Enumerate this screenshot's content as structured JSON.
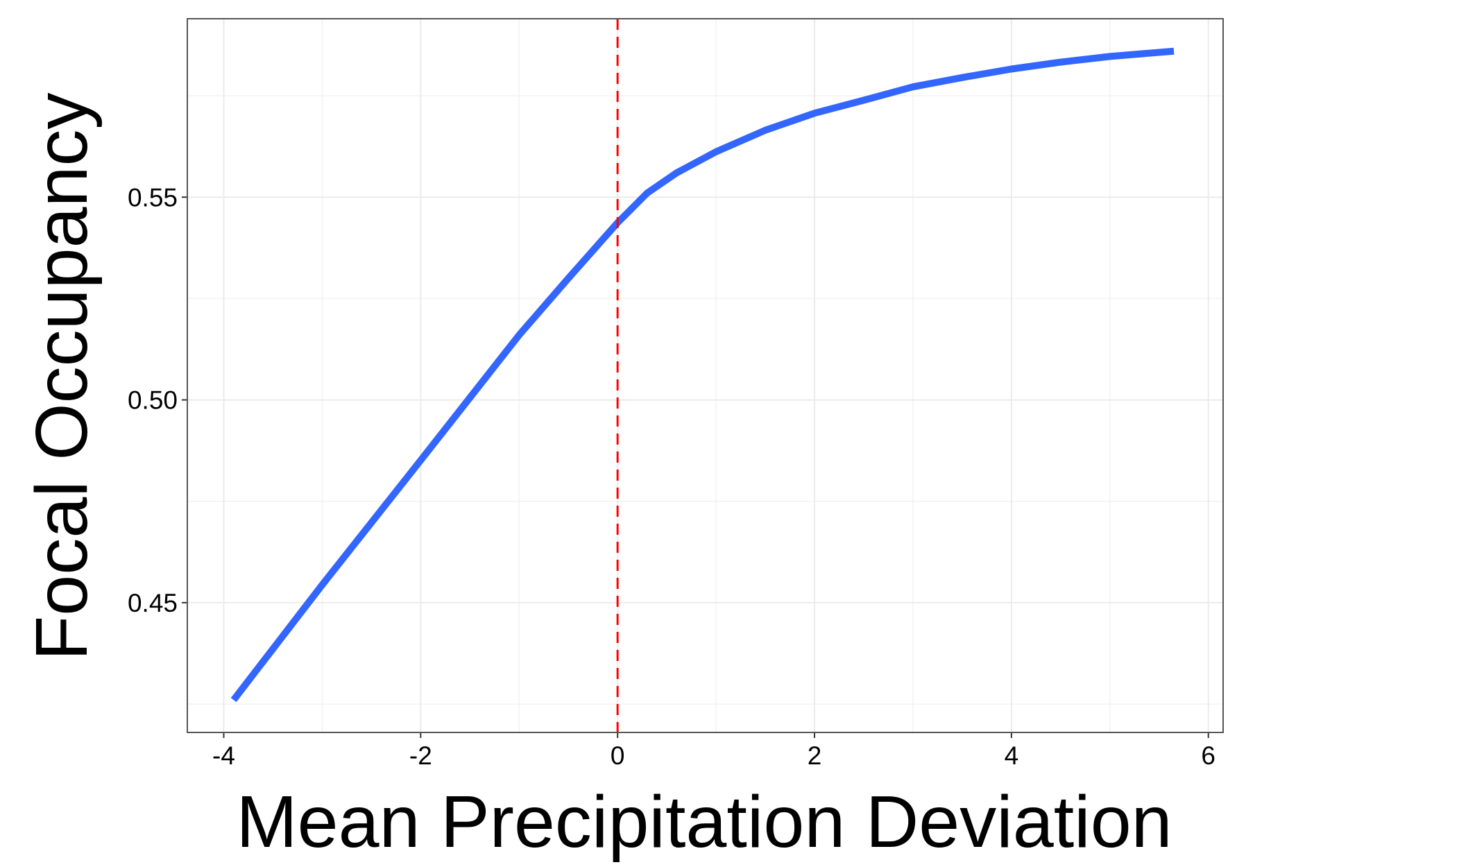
{
  "chart_data": {
    "type": "line",
    "x_label": "Mean Precipitation Deviation",
    "y_label": "Focal Occupancy",
    "x": [
      -3.9,
      -3,
      -2,
      -1,
      -0.5,
      0,
      0.3,
      0.6,
      1,
      1.5,
      2,
      2.5,
      3,
      3.5,
      4,
      4.5,
      5,
      5.65
    ],
    "series": [
      {
        "color": "#3366ff",
        "values": [
          0.426,
          0.4544,
          0.4851,
          0.516,
          0.53,
          0.5437,
          0.551,
          0.556,
          0.5612,
          0.5665,
          0.5707,
          0.5739,
          0.5772,
          0.5795,
          0.5816,
          0.5833,
          0.5847,
          0.586
        ]
      }
    ],
    "xlim": [
      -4.37,
      6.15
    ],
    "ylim": [
      0.418,
      0.594
    ],
    "xticks": [
      -4,
      -2,
      0,
      2,
      4,
      6
    ],
    "yticks": [
      {
        "value": 0.45,
        "label": "0.45"
      },
      {
        "value": 0.5,
        "label": "0.50"
      },
      {
        "value": 0.55,
        "label": "0.55"
      }
    ],
    "x_minor_grid": [
      -3,
      -1,
      1,
      3,
      5
    ],
    "y_minor_grid": [
      0.425,
      0.475,
      0.525,
      0.575
    ],
    "grid": true,
    "vline": {
      "x": 0,
      "color": "#ff0000",
      "dashed": true
    }
  }
}
